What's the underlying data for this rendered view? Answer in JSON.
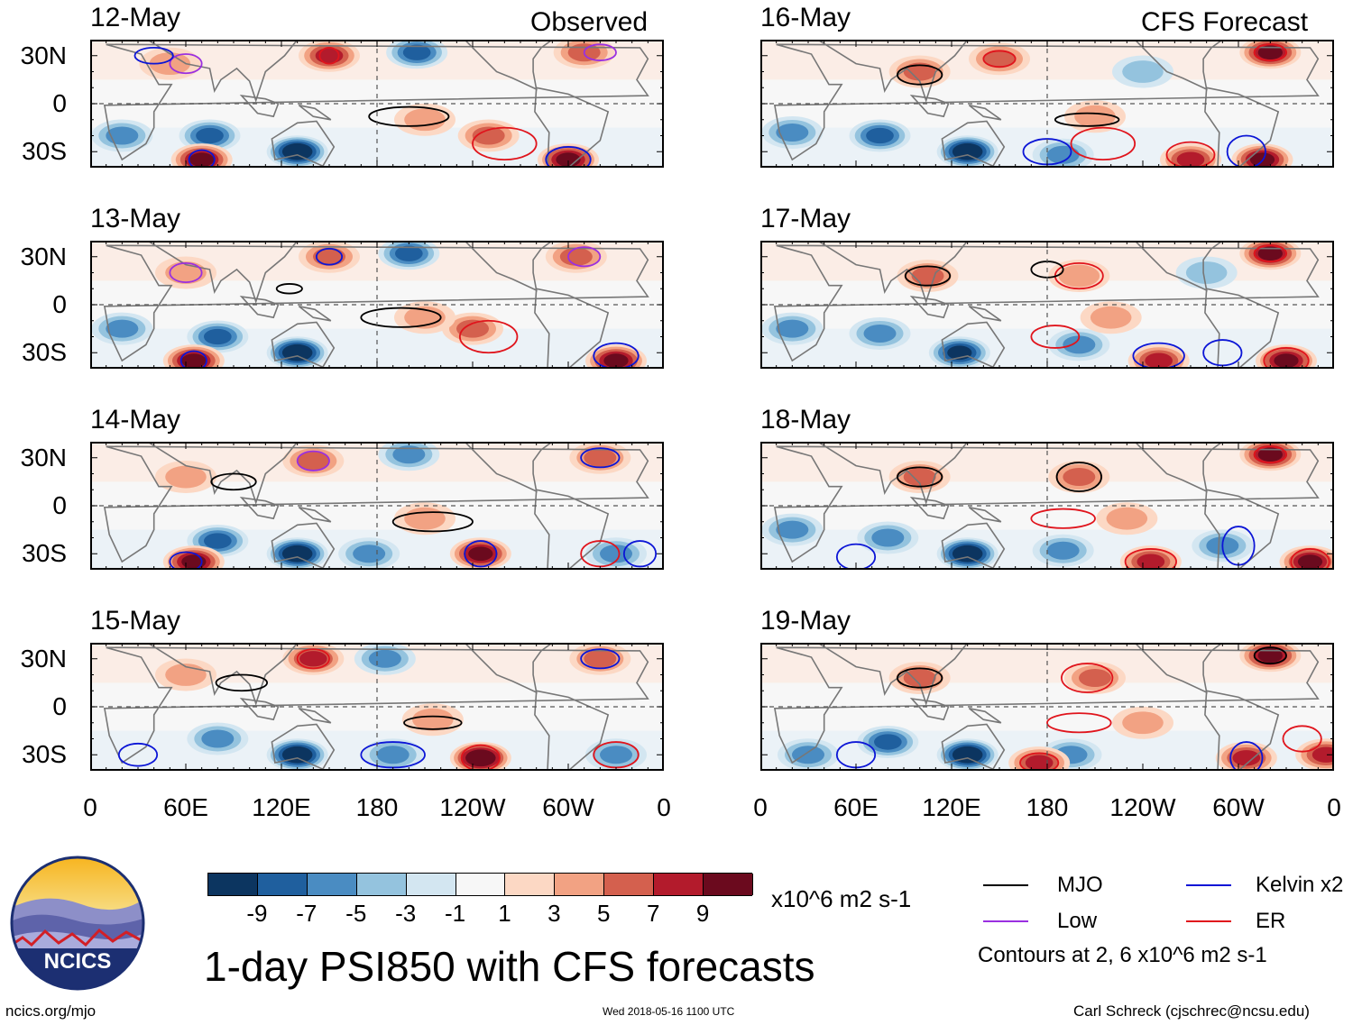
{
  "colors": {
    "mjo": "#000000",
    "low": "#9a2fe0",
    "kelvin": "#0b15d6",
    "er": "#e0141c",
    "colorbar": [
      "#0c3560",
      "#1f5f9e",
      "#4a8cc2",
      "#94c3de",
      "#d3e6f1",
      "#f7f7f7",
      "#fcd8c4",
      "#f2a283",
      "#d4604e",
      "#b31b2c",
      "#6b0a1e"
    ]
  },
  "observed_label": "Observed",
  "forecast_label": "CFS Forecast",
  "y_ticks": [
    "30N",
    "0",
    "30S"
  ],
  "x_ticks": [
    "0",
    "60E",
    "120E",
    "180",
    "120W",
    "60W",
    "0"
  ],
  "colorbar_ticks": [
    "-9",
    "-7",
    "-5",
    "-3",
    "-1",
    "1",
    "3",
    "5",
    "7",
    "9"
  ],
  "units": "x10^6 m2 s-1",
  "main_title": "1-day PSI850 with CFS forecasts",
  "logo_text": "NCICS",
  "legend": {
    "mjo": "MJO",
    "low": "Low",
    "kelvin": "Kelvin x2",
    "er": "ER",
    "contours_note": "Contours at 2, 6 x10^6 m2 s-1"
  },
  "footer": {
    "left": "ncics.org/mjo",
    "center": "Wed 2018-05-16 1100 UTC",
    "right": "Carl Schreck (cjschrec@ncsu.edu)"
  },
  "chart_data": {
    "type": "heatmap",
    "title": "1-day PSI850 with CFS forecasts",
    "variable": "850-hPa streamfunction anomaly",
    "units": "x10^6 m2 s-1",
    "color_levels": [
      -9,
      -7,
      -5,
      -3,
      -1,
      1,
      3,
      5,
      7,
      9
    ],
    "contour_levels": [
      2,
      6
    ],
    "x_range_deg": [
      0,
      360
    ],
    "y_range_deg": [
      -40,
      40
    ],
    "panels": [
      {
        "date": "12-May",
        "type": "Observed",
        "anomalies": [
          {
            "lon": 130,
            "lat": -30,
            "v": -10
          },
          {
            "lon": 75,
            "lat": -20,
            "v": -6
          },
          {
            "lon": 205,
            "lat": 32,
            "v": -6
          },
          {
            "lon": 300,
            "lat": -35,
            "v": 9
          },
          {
            "lon": 70,
            "lat": -35,
            "v": 9
          },
          {
            "lon": 150,
            "lat": 30,
            "v": 7
          },
          {
            "lon": 310,
            "lat": 32,
            "v": 5
          },
          {
            "lon": 250,
            "lat": -20,
            "v": 4
          },
          {
            "lon": 210,
            "lat": -10,
            "v": 3
          },
          {
            "lon": 50,
            "lat": 25,
            "v": 3
          },
          {
            "lon": 20,
            "lat": -20,
            "v": -4
          }
        ]
      },
      {
        "date": "13-May",
        "type": "Observed",
        "anomalies": [
          {
            "lon": 130,
            "lat": -30,
            "v": -10
          },
          {
            "lon": 80,
            "lat": -20,
            "v": -6
          },
          {
            "lon": 200,
            "lat": 32,
            "v": -6
          },
          {
            "lon": 330,
            "lat": -35,
            "v": 8
          },
          {
            "lon": 65,
            "lat": -35,
            "v": 8
          },
          {
            "lon": 150,
            "lat": 30,
            "v": 5
          },
          {
            "lon": 305,
            "lat": 30,
            "v": 4
          },
          {
            "lon": 240,
            "lat": -15,
            "v": 4
          },
          {
            "lon": 210,
            "lat": -8,
            "v": 3
          },
          {
            "lon": 60,
            "lat": 20,
            "v": 3
          },
          {
            "lon": 20,
            "lat": -15,
            "v": -4
          }
        ]
      },
      {
        "date": "14-May",
        "type": "Observed",
        "anomalies": [
          {
            "lon": 130,
            "lat": -30,
            "v": -10
          },
          {
            "lon": 80,
            "lat": -22,
            "v": -6
          },
          {
            "lon": 200,
            "lat": 32,
            "v": -5
          },
          {
            "lon": 245,
            "lat": -30,
            "v": 9
          },
          {
            "lon": 65,
            "lat": -35,
            "v": 8
          },
          {
            "lon": 140,
            "lat": 28,
            "v": 5
          },
          {
            "lon": 320,
            "lat": 30,
            "v": 5
          },
          {
            "lon": 210,
            "lat": -8,
            "v": 3
          },
          {
            "lon": 60,
            "lat": 18,
            "v": 3
          },
          {
            "lon": 330,
            "lat": -30,
            "v": -5
          },
          {
            "lon": 175,
            "lat": -30,
            "v": -4
          }
        ]
      },
      {
        "date": "15-May",
        "type": "Observed",
        "anomalies": [
          {
            "lon": 130,
            "lat": -30,
            "v": -10
          },
          {
            "lon": 80,
            "lat": -20,
            "v": -5
          },
          {
            "lon": 185,
            "lat": 30,
            "v": -5
          },
          {
            "lon": 245,
            "lat": -32,
            "v": 10
          },
          {
            "lon": 140,
            "lat": 30,
            "v": 7
          },
          {
            "lon": 320,
            "lat": 30,
            "v": 5
          },
          {
            "lon": 215,
            "lat": -8,
            "v": 3
          },
          {
            "lon": 60,
            "lat": 20,
            "v": 3
          },
          {
            "lon": 330,
            "lat": -30,
            "v": -5
          },
          {
            "lon": 190,
            "lat": -30,
            "v": -5
          }
        ]
      },
      {
        "date": "16-May",
        "type": "CFS Forecast",
        "anomalies": [
          {
            "lon": 130,
            "lat": -30,
            "v": -10
          },
          {
            "lon": 75,
            "lat": -20,
            "v": -6
          },
          {
            "lon": 190,
            "lat": -32,
            "v": -5
          },
          {
            "lon": 320,
            "lat": 32,
            "v": 8
          },
          {
            "lon": 315,
            "lat": -35,
            "v": 9
          },
          {
            "lon": 270,
            "lat": -35,
            "v": 7
          },
          {
            "lon": 100,
            "lat": 20,
            "v": 4
          },
          {
            "lon": 150,
            "lat": 28,
            "v": 4
          },
          {
            "lon": 210,
            "lat": -8,
            "v": 3
          },
          {
            "lon": 240,
            "lat": 20,
            "v": -3
          },
          {
            "lon": 20,
            "lat": -18,
            "v": -4
          }
        ]
      },
      {
        "date": "17-May",
        "type": "CFS Forecast",
        "anomalies": [
          {
            "lon": 125,
            "lat": -30,
            "v": -9
          },
          {
            "lon": 75,
            "lat": -18,
            "v": -5
          },
          {
            "lon": 200,
            "lat": -25,
            "v": -4
          },
          {
            "lon": 320,
            "lat": 32,
            "v": 8
          },
          {
            "lon": 330,
            "lat": -35,
            "v": 9
          },
          {
            "lon": 250,
            "lat": -35,
            "v": 7
          },
          {
            "lon": 105,
            "lat": 18,
            "v": 4
          },
          {
            "lon": 200,
            "lat": 18,
            "v": 3
          },
          {
            "lon": 220,
            "lat": -8,
            "v": 3
          },
          {
            "lon": 280,
            "lat": 20,
            "v": -3
          },
          {
            "lon": 20,
            "lat": -15,
            "v": -4
          }
        ]
      },
      {
        "date": "18-May",
        "type": "CFS Forecast",
        "anomalies": [
          {
            "lon": 130,
            "lat": -30,
            "v": -10
          },
          {
            "lon": 80,
            "lat": -20,
            "v": -5
          },
          {
            "lon": 190,
            "lat": -28,
            "v": -5
          },
          {
            "lon": 320,
            "lat": 32,
            "v": 8
          },
          {
            "lon": 345,
            "lat": -35,
            "v": 8
          },
          {
            "lon": 245,
            "lat": -35,
            "v": 6
          },
          {
            "lon": 100,
            "lat": 18,
            "v": 4
          },
          {
            "lon": 200,
            "lat": 18,
            "v": 4
          },
          {
            "lon": 230,
            "lat": -8,
            "v": 3
          },
          {
            "lon": 290,
            "lat": -25,
            "v": -5
          },
          {
            "lon": 20,
            "lat": -15,
            "v": -4
          }
        ]
      },
      {
        "date": "19-May",
        "type": "CFS Forecast",
        "anomalies": [
          {
            "lon": 130,
            "lat": -30,
            "v": -10
          },
          {
            "lon": 80,
            "lat": -22,
            "v": -6
          },
          {
            "lon": 195,
            "lat": -30,
            "v": -5
          },
          {
            "lon": 320,
            "lat": 32,
            "v": 8
          },
          {
            "lon": 305,
            "lat": -32,
            "v": 7
          },
          {
            "lon": 355,
            "lat": -30,
            "v": 7
          },
          {
            "lon": 175,
            "lat": -35,
            "v": 7
          },
          {
            "lon": 100,
            "lat": 18,
            "v": 4
          },
          {
            "lon": 210,
            "lat": 18,
            "v": 4
          },
          {
            "lon": 240,
            "lat": -10,
            "v": 3
          },
          {
            "lon": 30,
            "lat": -30,
            "v": -4
          }
        ]
      }
    ]
  }
}
